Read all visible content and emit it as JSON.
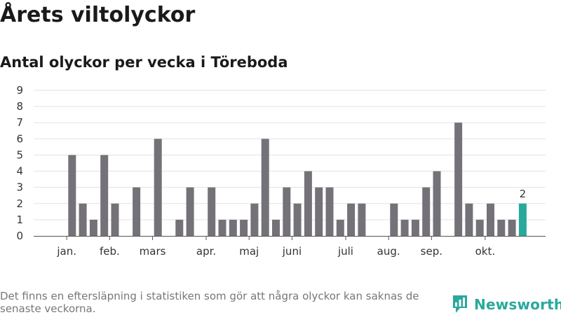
{
  "header": {
    "title": "Årets viltolyckor",
    "subtitle": "Antal olyckor per vecka i Töreboda"
  },
  "footnote": "Det finns en eftersläpning i statistiken som gör att några olyckor kan saknas de senaste veckorna.",
  "brand": {
    "name": "Newsworthy",
    "icon": "newsworthy-logo-icon",
    "color": "#28a99b"
  },
  "chart_data": {
    "type": "bar",
    "title": "Antal olyckor per vecka i Töreboda",
    "xlabel": "",
    "ylabel": "",
    "ylim": [
      0,
      9
    ],
    "yticks": [
      0,
      1,
      2,
      3,
      4,
      5,
      6,
      7,
      8,
      9
    ],
    "grid": true,
    "x_start_week": 1,
    "values": [
      0,
      5,
      2,
      1,
      5,
      2,
      0,
      3,
      0,
      6,
      0,
      1,
      3,
      0,
      3,
      1,
      1,
      1,
      2,
      6,
      1,
      3,
      2,
      4,
      3,
      3,
      1,
      2,
      2,
      0,
      0,
      2,
      1,
      1,
      3,
      4,
      0,
      7,
      2,
      1,
      2,
      1,
      1,
      2
    ],
    "month_labels": [
      {
        "label": "jan.",
        "week": 1.5
      },
      {
        "label": "feb.",
        "week": 5.5
      },
      {
        "label": "mars",
        "week": 9.5
      },
      {
        "label": "apr.",
        "week": 14.5
      },
      {
        "label": "maj",
        "week": 18.5
      },
      {
        "label": "juni",
        "week": 22.5
      },
      {
        "label": "juli",
        "week": 27.5
      },
      {
        "label": "aug.",
        "week": 31.5
      },
      {
        "label": "sep.",
        "week": 35.5
      },
      {
        "label": "okt.",
        "week": 40.5
      }
    ],
    "highlight_last": true,
    "highlight_label": "2",
    "colors": {
      "bar": "#747278",
      "highlight": "#27a99b",
      "grid": "#e2e2e2",
      "axis": "#555555"
    }
  }
}
